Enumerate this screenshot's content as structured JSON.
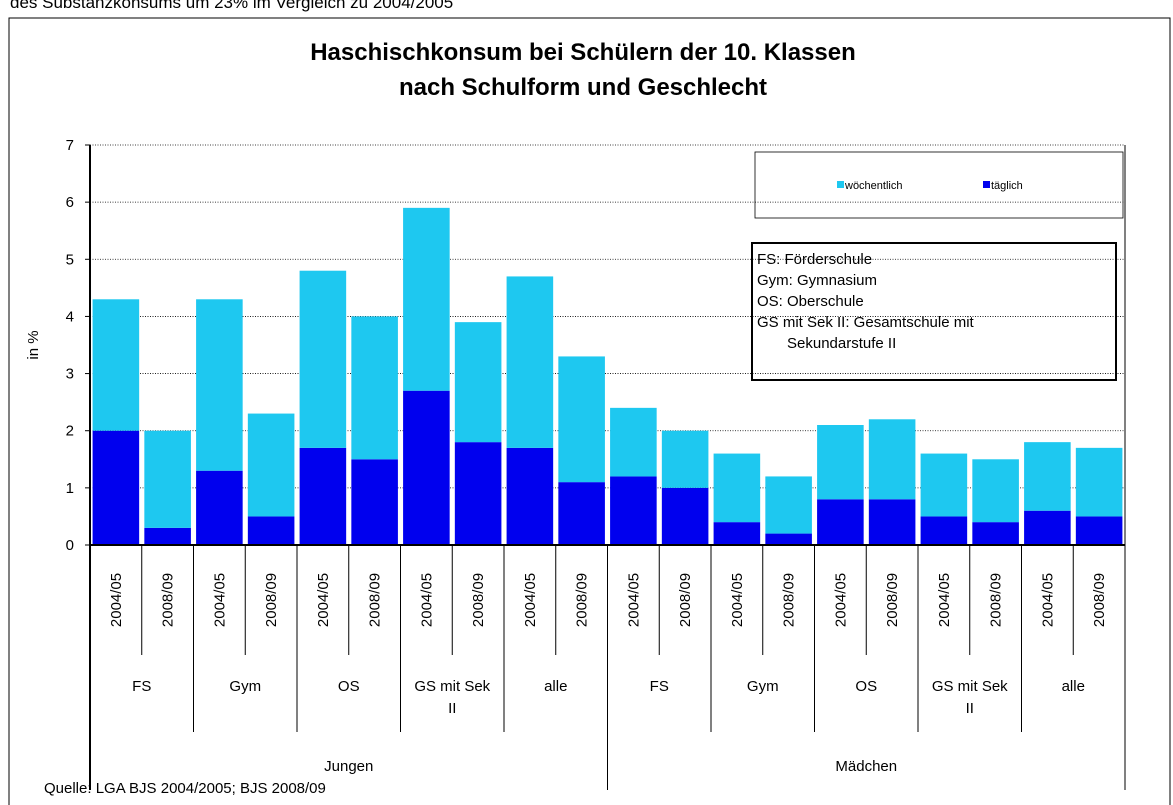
{
  "chart_data": {
    "type": "stacked_bar",
    "header_text": "des Substanzkonsums um 23% im Vergleich zu 2004/2005",
    "title": [
      "Haschischkonsum bei Schülern der 10. Klassen",
      "nach Schulform und Geschlecht"
    ],
    "y_label": "in %",
    "categories": [
      "2004/05",
      "2008/09",
      "2004/05",
      "2008/09",
      "2004/05",
      "2008/09",
      "2004/05",
      "2008/09",
      "2004/05",
      "2008/09",
      "2004/05",
      "2008/09",
      "2004/05",
      "2008/09",
      "2004/05",
      "2008/09",
      "2004/05",
      "2008/09",
      "2004/05",
      "2008/09"
    ],
    "category_groups": [
      "FS",
      "Gym",
      "OS",
      "GS mit Sek II",
      "alle",
      "FS",
      "Gym",
      "OS",
      "GS mit Sek II",
      "alle"
    ],
    "category_supergroups": [
      "Jungen",
      "Mädchen"
    ],
    "series": [
      {
        "name": "täglich",
        "color": "#0000ee",
        "values": [
          2.0,
          0.3,
          1.3,
          0.5,
          1.7,
          1.5,
          2.7,
          1.8,
          1.7,
          1.1,
          1.2,
          1.0,
          0.4,
          0.2,
          0.8,
          0.8,
          0.5,
          0.4,
          0.6,
          0.5
        ]
      },
      {
        "name": "wöchentlich",
        "color": "#1ec8f0",
        "values": [
          2.3,
          1.7,
          3.0,
          1.8,
          3.1,
          2.5,
          3.2,
          2.1,
          3.0,
          2.2,
          1.2,
          1.0,
          1.2,
          1.0,
          1.3,
          1.4,
          1.1,
          1.1,
          1.2,
          1.2
        ]
      }
    ],
    "ylim": [
      0,
      7
    ],
    "yticks": [
      0,
      1,
      2,
      3,
      4,
      5,
      6,
      7
    ],
    "grid": true,
    "info_box": [
      "FS: Förderschule",
      "Gym: Gymnasium",
      "OS: Oberschule",
      "GS mit Sek II: Gesamtschule mit",
      "Sekundarstufe II"
    ],
    "source": "Quelle: LGA BJS 2004/2005; BJS 2008/09"
  }
}
